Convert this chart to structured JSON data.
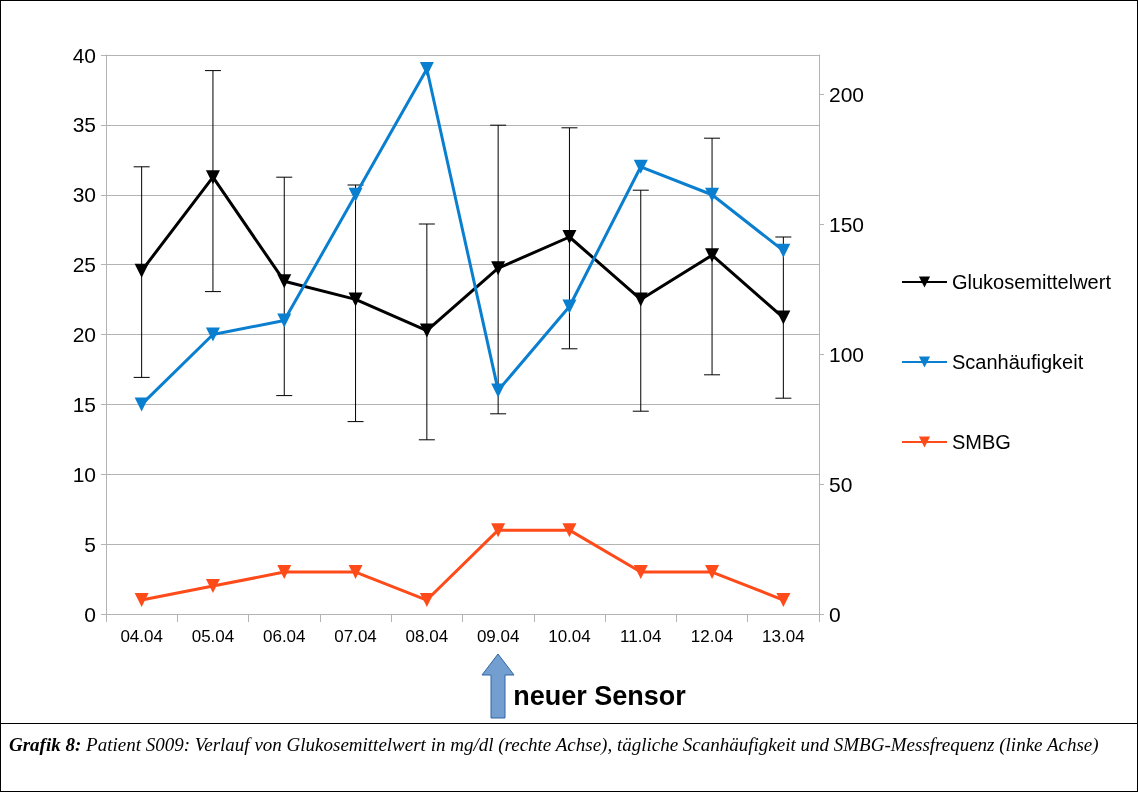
{
  "chart_data": {
    "type": "line",
    "categories": [
      "04.04",
      "05.04",
      "06.04",
      "07.04",
      "08.04",
      "09.04",
      "10.04",
      "11.04",
      "12.04",
      "13.04"
    ],
    "series": [
      {
        "name": "Glukosemittelwert",
        "color": "#000000",
        "axis": "y2",
        "values": [
          132,
          168,
          128,
          121,
          109,
          133,
          145,
          121,
          138,
          114
        ],
        "errors": [
          [
            91,
            172
          ],
          [
            124,
            209
          ],
          [
            84,
            168
          ],
          [
            74,
            165
          ],
          [
            67,
            150
          ],
          [
            77,
            188
          ],
          [
            102,
            187
          ],
          [
            78,
            163
          ],
          [
            92,
            183
          ],
          [
            83,
            145
          ]
        ]
      },
      {
        "name": "Scanhäufigkeit",
        "color": "#0a7fd0",
        "values": [
          15,
          20,
          21,
          30,
          39,
          16,
          22,
          32,
          30,
          26
        ]
      },
      {
        "name": "SMBG",
        "color": "#ff4b1a",
        "values": [
          1,
          2,
          3,
          3,
          1,
          6,
          6,
          3,
          3,
          1
        ]
      }
    ],
    "ylim": [
      0,
      40
    ],
    "yticks": [
      0,
      5,
      10,
      15,
      20,
      25,
      30,
      35,
      40
    ],
    "y2lim": [
      0,
      215
    ],
    "y2ticks": [
      0,
      50,
      100,
      150,
      200
    ],
    "grid": "y",
    "legend": "right",
    "marker": "triangle",
    "line_style": "solid",
    "annotations": [
      "neuer Sensor",
      "Grafik 8:",
      "Patient S009:  Verlauf von Glukosemittelwert in mg/dl (rechte Achse), tägliche Scanhäufigkeit und SMBG-Messfrequenz (linke Achse)"
    ]
  }
}
